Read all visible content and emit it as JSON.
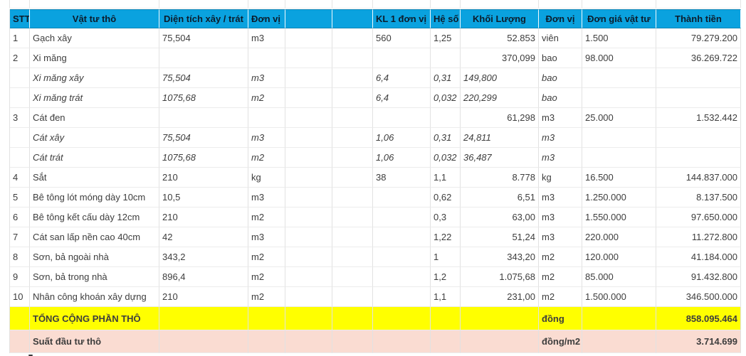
{
  "colors": {
    "header_bg": "#0aa2df",
    "header_border": "#0f85b5",
    "total_bg": "#ffff00",
    "per_m2_bg": "#fadcd2",
    "grid_line": "#e2e2e2"
  },
  "table": {
    "header": [
      "STT",
      "Vật tư thô",
      "Diện tích xây / trát",
      "Đơn vị",
      "",
      "",
      "KL 1 đơn vị",
      "Hệ số",
      "Khối Lượng",
      "Đơn vị",
      "Đơn giá vật tư",
      "Thành tiền"
    ],
    "rows": [
      {
        "italic": false,
        "cells": [
          "1",
          "Gạch xây",
          "75,504",
          "m3",
          "",
          "",
          "560",
          "1,25",
          "52.853",
          "viên",
          "1.500",
          "79.279.200"
        ]
      },
      {
        "italic": false,
        "cells": [
          "2",
          "Xi măng",
          "",
          "",
          "",
          "",
          "",
          "",
          "370,099",
          "bao",
          "98.000",
          "36.269.722"
        ]
      },
      {
        "italic": true,
        "cells": [
          "",
          "Xi măng xây",
          "75,504",
          "m3",
          "",
          "",
          "6,4",
          "0,31",
          "149,800",
          "bao",
          "",
          ""
        ]
      },
      {
        "italic": true,
        "cells": [
          "",
          "Xi măng trát",
          "1075,68",
          "m2",
          "",
          "",
          "6,4",
          "0,032",
          "220,299",
          "bao",
          "",
          ""
        ]
      },
      {
        "italic": false,
        "cells": [
          "3",
          "Cát đen",
          "",
          "",
          "",
          "",
          "",
          "",
          "61,298",
          "m3",
          "25.000",
          "1.532.442"
        ]
      },
      {
        "italic": true,
        "cells": [
          "",
          "Cát xây",
          "75,504",
          "m3",
          "",
          "",
          "1,06",
          "0,31",
          "24,811",
          "m3",
          "",
          ""
        ]
      },
      {
        "italic": true,
        "cells": [
          "",
          "Cát trát",
          "1075,68",
          "m2",
          "",
          "",
          "1,06",
          "0,032",
          "36,487",
          "m3",
          "",
          ""
        ]
      },
      {
        "italic": false,
        "cells": [
          "4",
          "Sắt",
          "210",
          "kg",
          "",
          "",
          "38",
          "1,1",
          "8.778",
          "kg",
          "16.500",
          "144.837.000"
        ]
      },
      {
        "italic": false,
        "cells": [
          "5",
          "Bê tông lót móng dày 10cm",
          "10,5",
          "m3",
          "",
          "",
          "",
          "0,62",
          "6,51",
          "m3",
          "1.250.000",
          "8.137.500"
        ]
      },
      {
        "italic": false,
        "cells": [
          "6",
          "Bê tông kết cấu dày 12cm",
          "210",
          "m2",
          "",
          "",
          "",
          "0,3",
          "63,00",
          "m3",
          "1.550.000",
          "97.650.000"
        ]
      },
      {
        "italic": false,
        "cells": [
          "7",
          "Cát san lấp nền cao 40cm",
          "42",
          "m3",
          "",
          "",
          "",
          "1,22",
          "51,24",
          "m3",
          "220.000",
          "11.272.800"
        ]
      },
      {
        "italic": false,
        "cells": [
          "8",
          "Sơn, bả ngoài nhà",
          "343,2",
          "m2",
          "",
          "",
          "",
          "1",
          "343,20",
          "m2",
          "120.000",
          "41.184.000"
        ]
      },
      {
        "italic": false,
        "cells": [
          "9",
          "Sơn, bả trong nhà",
          "896,4",
          "m2",
          "",
          "",
          "",
          "1,2",
          "1.075,68",
          "m2",
          "85.000",
          "91.432.800"
        ]
      },
      {
        "italic": false,
        "cells": [
          "10",
          "Nhân công khoán xây dựng",
          "210",
          "m2",
          "",
          "",
          "",
          "1,1",
          "231,00",
          "m2",
          "1.500.000",
          "346.500.000"
        ]
      }
    ],
    "total_row": {
      "cells": [
        "",
        "TỔNG CỘNG PHẦN THÔ",
        "",
        "",
        "",
        "",
        "",
        "",
        "",
        "đồng",
        "",
        "858.095.464"
      ]
    },
    "per_m2_row": {
      "cells": [
        "",
        "Suất đầu tư thô",
        "",
        "",
        "",
        "",
        "",
        "",
        "",
        "đồng/m2",
        "",
        "3.714.699"
      ]
    }
  }
}
